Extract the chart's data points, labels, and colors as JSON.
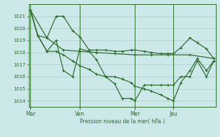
{
  "bg_color": "#cce8e8",
  "grid_color": "#aacccc",
  "line_color": "#2d6a2d",
  "ylabel": "Pression niveau de la mer( hPa )",
  "ylim": [
    1013.5,
    1022.0
  ],
  "yticks": [
    1014,
    1015,
    1016,
    1017,
    1018,
    1019,
    1020,
    1021
  ],
  "xtick_labels": [
    "Mar",
    "Ven",
    "Mer",
    "Jeu"
  ],
  "xtick_positions": [
    0.0,
    0.27,
    0.57,
    0.78
  ],
  "vline_positions": [
    0.0,
    0.27,
    0.57,
    0.78
  ],
  "series1_x": [
    0.0,
    0.04,
    0.09,
    0.14,
    0.18,
    0.23,
    0.27,
    0.32,
    0.36,
    0.41,
    0.46,
    0.5,
    0.55,
    0.57,
    0.62,
    0.66,
    0.71,
    0.75,
    0.78,
    0.82,
    0.87,
    0.91,
    0.96,
    1.0
  ],
  "series1_y": [
    1021.5,
    1019.4,
    1019.2,
    1021.0,
    1021.0,
    1019.8,
    1019.3,
    1018.2,
    1018.2,
    1018.2,
    1018.1,
    1018.1,
    1018.2,
    1018.2,
    1018.1,
    1018.0,
    1017.9,
    1017.9,
    1017.9,
    1018.4,
    1019.2,
    1018.8,
    1018.3,
    1017.5
  ],
  "series2_x": [
    0.0,
    0.04,
    0.09,
    0.14,
    0.18,
    0.23,
    0.27,
    0.32,
    0.36,
    0.41,
    0.46,
    0.5,
    0.55,
    0.57,
    0.62,
    0.66,
    0.71,
    0.75,
    0.78,
    0.82,
    0.87,
    0.91,
    0.96,
    1.0
  ],
  "series2_y": [
    1021.5,
    1019.4,
    1018.1,
    1019.0,
    1016.5,
    1016.0,
    1018.3,
    1018.1,
    1017.4,
    1016.0,
    1015.4,
    1014.2,
    1014.2,
    1014.0,
    1015.3,
    1015.3,
    1015.3,
    1015.3,
    1015.3,
    1016.0,
    1016.0,
    1017.3,
    1016.0,
    1017.3
  ],
  "series3_x": [
    0.0,
    0.09,
    0.18,
    0.27,
    0.36,
    0.46,
    0.57,
    0.66,
    0.75,
    0.87,
    1.0
  ],
  "series3_y": [
    1021.5,
    1019.2,
    1018.2,
    1018.1,
    1018.0,
    1017.9,
    1017.8,
    1017.8,
    1017.8,
    1017.8,
    1017.5
  ],
  "series4_x": [
    0.0,
    0.04,
    0.09,
    0.14,
    0.18,
    0.23,
    0.27,
    0.32,
    0.36,
    0.41,
    0.46,
    0.5,
    0.55,
    0.57,
    0.62,
    0.66,
    0.71,
    0.75,
    0.78,
    0.82,
    0.87,
    0.91,
    0.96,
    1.0
  ],
  "series4_y": [
    1021.5,
    1019.4,
    1018.1,
    1018.1,
    1017.8,
    1017.3,
    1016.9,
    1016.6,
    1016.2,
    1016.0,
    1016.0,
    1015.8,
    1015.5,
    1015.2,
    1015.0,
    1014.8,
    1014.5,
    1014.2,
    1014.0,
    1015.5,
    1016.5,
    1017.5,
    1016.5,
    1017.3
  ]
}
